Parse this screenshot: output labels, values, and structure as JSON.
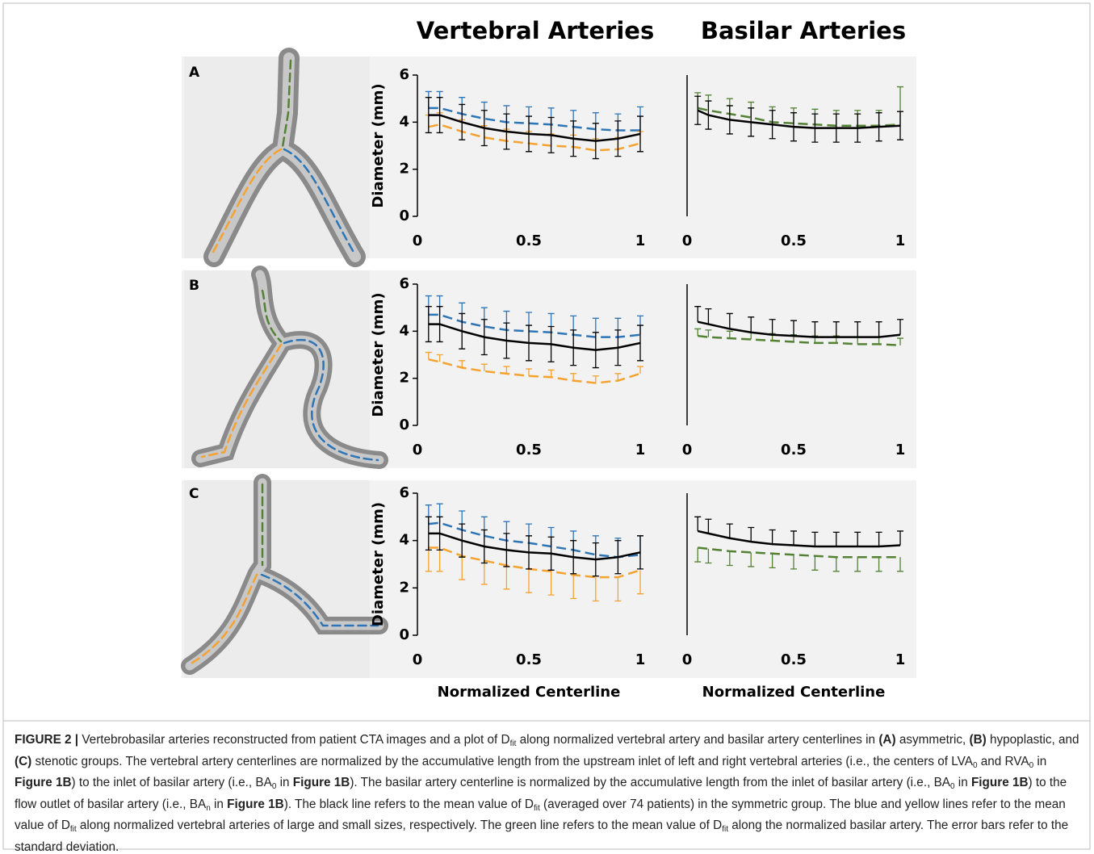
{
  "figure": {
    "columns": [
      "Vertebral Arteries",
      "Basilar Arteries"
    ],
    "panels": [
      "A",
      "B",
      "C"
    ]
  },
  "chart_data": [
    {
      "type": "line",
      "ylabel": "Diameter (mm)",
      "x": [
        0.05,
        0.1,
        0.2,
        0.3,
        0.4,
        0.5,
        0.6,
        0.7,
        0.8,
        0.9,
        1
      ],
      "xlim": [
        0,
        1
      ],
      "ylim": [
        0,
        6
      ],
      "xticks": [
        0,
        0.5,
        1
      ],
      "yticks": [
        0,
        2,
        4,
        6
      ],
      "series": [
        {
          "color": "#2e75b6",
          "dash": true,
          "error_direction": "up",
          "values": [
            4.6,
            4.6,
            4.35,
            4.15,
            4.0,
            3.95,
            3.9,
            3.8,
            3.7,
            3.65,
            3.65
          ],
          "errors": [
            0.7,
            0.7,
            0.7,
            0.7,
            0.7,
            0.7,
            0.7,
            0.7,
            0.7,
            0.7,
            1.0
          ]
        },
        {
          "color": "#f4a230",
          "dash": true,
          "error_direction": "up",
          "values": [
            3.8,
            3.9,
            3.6,
            3.35,
            3.2,
            3.1,
            3.0,
            2.95,
            2.8,
            2.85,
            3.1
          ],
          "errors": [
            0.5,
            0.5,
            0.5,
            0.5,
            0.5,
            0.5,
            0.5,
            0.5,
            0.5,
            0.5,
            0.5
          ]
        },
        {
          "color": "#000000",
          "dash": false,
          "error_direction": "both",
          "values": [
            4.3,
            4.3,
            4.0,
            3.75,
            3.6,
            3.5,
            3.45,
            3.3,
            3.2,
            3.3,
            3.5
          ],
          "errors": [
            0.75,
            0.75,
            0.75,
            0.75,
            0.75,
            0.75,
            0.75,
            0.75,
            0.75,
            0.75,
            0.75
          ]
        }
      ]
    },
    {
      "type": "line",
      "x": [
        0.05,
        0.1,
        0.2,
        0.3,
        0.4,
        0.5,
        0.6,
        0.7,
        0.8,
        0.9,
        1
      ],
      "xlim": [
        0,
        1
      ],
      "ylim": [
        0,
        6
      ],
      "xticks": [
        0,
        0.5,
        1
      ],
      "series": [
        {
          "color": "#548235",
          "dash": true,
          "error_direction": "up",
          "values": [
            4.6,
            4.5,
            4.35,
            4.2,
            4.0,
            3.95,
            3.9,
            3.85,
            3.85,
            3.85,
            3.9
          ],
          "errors": [
            0.65,
            0.65,
            0.65,
            0.65,
            0.65,
            0.65,
            0.65,
            0.65,
            0.65,
            0.65,
            1.6
          ]
        },
        {
          "color": "#000000",
          "dash": false,
          "error_direction": "both",
          "values": [
            4.5,
            4.3,
            4.1,
            4.0,
            3.9,
            3.8,
            3.75,
            3.75,
            3.75,
            3.8,
            3.85
          ],
          "errors": [
            0.6,
            0.6,
            0.6,
            0.6,
            0.6,
            0.6,
            0.6,
            0.6,
            0.6,
            0.6,
            0.6
          ]
        }
      ]
    },
    {
      "type": "line",
      "ylabel": "Diameter (mm)",
      "x": [
        0.05,
        0.1,
        0.2,
        0.3,
        0.4,
        0.5,
        0.6,
        0.7,
        0.8,
        0.9,
        1
      ],
      "xlim": [
        0,
        1
      ],
      "ylim": [
        0,
        6
      ],
      "xticks": [
        0,
        0.5,
        1
      ],
      "yticks": [
        0,
        2,
        4,
        6
      ],
      "series": [
        {
          "color": "#2e75b6",
          "dash": true,
          "error_direction": "up",
          "values": [
            4.7,
            4.7,
            4.4,
            4.2,
            4.05,
            4.0,
            3.95,
            3.85,
            3.75,
            3.75,
            3.85
          ],
          "errors": [
            0.8,
            0.8,
            0.8,
            0.8,
            0.8,
            0.8,
            0.8,
            0.8,
            0.8,
            0.8,
            0.8
          ]
        },
        {
          "color": "#f4a230",
          "dash": true,
          "error_direction": "up",
          "values": [
            2.8,
            2.7,
            2.45,
            2.3,
            2.2,
            2.1,
            2.05,
            1.9,
            1.8,
            1.9,
            2.2
          ],
          "errors": [
            0.3,
            0.3,
            0.3,
            0.3,
            0.3,
            0.3,
            0.3,
            0.3,
            0.3,
            0.3,
            0.3
          ]
        },
        {
          "color": "#000000",
          "dash": false,
          "error_direction": "both",
          "values": [
            4.3,
            4.3,
            4.0,
            3.75,
            3.6,
            3.5,
            3.45,
            3.3,
            3.2,
            3.3,
            3.5
          ],
          "errors": [
            0.75,
            0.75,
            0.75,
            0.75,
            0.75,
            0.75,
            0.75,
            0.75,
            0.75,
            0.75,
            0.75
          ]
        }
      ]
    },
    {
      "type": "line",
      "x": [
        0.05,
        0.1,
        0.2,
        0.3,
        0.4,
        0.5,
        0.6,
        0.7,
        0.8,
        0.9,
        1
      ],
      "xlim": [
        0,
        1
      ],
      "ylim": [
        0,
        6
      ],
      "xticks": [
        0,
        0.5,
        1
      ],
      "series": [
        {
          "color": "#548235",
          "dash": true,
          "error_direction": "up",
          "values": [
            3.8,
            3.75,
            3.7,
            3.65,
            3.6,
            3.55,
            3.5,
            3.5,
            3.45,
            3.45,
            3.4
          ],
          "errors": [
            0.3,
            0.3,
            0.3,
            0.3,
            0.3,
            0.3,
            0.3,
            0.3,
            0.3,
            0.3,
            0.3
          ]
        },
        {
          "color": "#000000",
          "dash": false,
          "error_direction": "up",
          "values": [
            4.4,
            4.3,
            4.1,
            3.95,
            3.85,
            3.8,
            3.75,
            3.75,
            3.75,
            3.75,
            3.85
          ],
          "errors": [
            0.65,
            0.65,
            0.65,
            0.65,
            0.65,
            0.65,
            0.65,
            0.65,
            0.65,
            0.65,
            0.65
          ]
        }
      ]
    },
    {
      "type": "line",
      "ylabel": "Diameter (mm)",
      "xlabel": "Normalized Centerline",
      "x": [
        0.05,
        0.1,
        0.2,
        0.3,
        0.4,
        0.5,
        0.6,
        0.7,
        0.8,
        0.9,
        1
      ],
      "xlim": [
        0,
        1
      ],
      "ylim": [
        0,
        6
      ],
      "xticks": [
        0,
        0.5,
        1
      ],
      "yticks": [
        0,
        2,
        4,
        6
      ],
      "series": [
        {
          "color": "#2e75b6",
          "dash": true,
          "error_direction": "up",
          "values": [
            4.7,
            4.75,
            4.45,
            4.2,
            4.0,
            3.9,
            3.75,
            3.6,
            3.4,
            3.3,
            3.4
          ],
          "errors": [
            0.8,
            0.8,
            0.8,
            0.8,
            0.8,
            0.8,
            0.8,
            0.8,
            0.8,
            0.8,
            0.8
          ]
        },
        {
          "color": "#f4a230",
          "dash": true,
          "error_direction": "down",
          "values": [
            3.7,
            3.7,
            3.35,
            3.15,
            2.95,
            2.8,
            2.7,
            2.55,
            2.45,
            2.45,
            2.75
          ],
          "errors": [
            1.0,
            1.0,
            1.0,
            1.0,
            1.0,
            1.0,
            1.0,
            1.0,
            1.0,
            1.0,
            1.0
          ]
        },
        {
          "color": "#000000",
          "dash": false,
          "error_direction": "both",
          "values": [
            4.3,
            4.3,
            4.0,
            3.75,
            3.6,
            3.5,
            3.45,
            3.3,
            3.2,
            3.3,
            3.5
          ],
          "errors": [
            0.7,
            0.7,
            0.7,
            0.7,
            0.7,
            0.7,
            0.7,
            0.7,
            0.7,
            0.7,
            0.7
          ]
        }
      ]
    },
    {
      "type": "line",
      "xlabel": "Normalized Centerline",
      "x": [
        0.05,
        0.1,
        0.2,
        0.3,
        0.4,
        0.5,
        0.6,
        0.7,
        0.8,
        0.9,
        1
      ],
      "xlim": [
        0,
        1
      ],
      "ylim": [
        0,
        6
      ],
      "xticks": [
        0,
        0.5,
        1
      ],
      "series": [
        {
          "color": "#548235",
          "dash": true,
          "error_direction": "down",
          "values": [
            3.7,
            3.65,
            3.55,
            3.5,
            3.45,
            3.4,
            3.35,
            3.3,
            3.3,
            3.3,
            3.3
          ],
          "errors": [
            0.6,
            0.6,
            0.6,
            0.6,
            0.6,
            0.6,
            0.6,
            0.6,
            0.6,
            0.6,
            0.6
          ]
        },
        {
          "color": "#000000",
          "dash": false,
          "error_direction": "up",
          "values": [
            4.4,
            4.3,
            4.1,
            3.95,
            3.85,
            3.8,
            3.75,
            3.75,
            3.75,
            3.75,
            3.8
          ],
          "errors": [
            0.6,
            0.6,
            0.6,
            0.6,
            0.6,
            0.6,
            0.6,
            0.6,
            0.6,
            0.6,
            0.6
          ]
        }
      ]
    }
  ],
  "caption": [
    {
      "t": "FIGURE 2 |",
      "s": "b"
    },
    {
      "t": " Vertebrobasilar arteries reconstructed from patient CTA images and a plot of D"
    },
    {
      "t": "fit",
      "s": "sub"
    },
    {
      "t": " along normalized vertebral artery and basilar artery centerlines in "
    },
    {
      "t": "(A)",
      "s": "b"
    },
    {
      "t": " asymmetric, "
    },
    {
      "t": "(B)",
      "s": "b"
    },
    {
      "t": " hypoplastic, and "
    },
    {
      "t": "(C)",
      "s": "b"
    },
    {
      "t": " stenotic groups. The vertebral artery centerlines are normalized by the accumulative length from the upstream inlet of left and right vertebral arteries (i.e., the centers of LVA"
    },
    {
      "t": "0",
      "s": "sub"
    },
    {
      "t": " and RVA"
    },
    {
      "t": "0",
      "s": "sub"
    },
    {
      "t": " in "
    },
    {
      "t": "Figure 1B",
      "s": "b"
    },
    {
      "t": ") to the inlet of basilar artery (i.e., BA"
    },
    {
      "t": "0",
      "s": "sub"
    },
    {
      "t": " in "
    },
    {
      "t": "Figure 1B",
      "s": "b"
    },
    {
      "t": "). The basilar artery centerline is normalized by the accumulative length from the inlet of basilar artery (i.e., BA"
    },
    {
      "t": "0",
      "s": "sub"
    },
    {
      "t": " in "
    },
    {
      "t": "Figure 1B",
      "s": "b"
    },
    {
      "t": ") to the flow outlet of basilar artery (i.e., BA"
    },
    {
      "t": "n",
      "s": "sub"
    },
    {
      "t": " in "
    },
    {
      "t": "Figure 1B",
      "s": "b"
    },
    {
      "t": "). The black line refers to the mean value of D"
    },
    {
      "t": "fit",
      "s": "sub"
    },
    {
      "t": " (averaged over 74 patients) in the symmetric group. The blue and yellow lines refer to the mean value of D"
    },
    {
      "t": "fit",
      "s": "sub"
    },
    {
      "t": " along normalized vertebral arteries of large and small sizes, respectively. The green line refers to the mean value of D"
    },
    {
      "t": "fit",
      "s": "sub"
    },
    {
      "t": " along the normalized basilar artery. The error bars refer to the standard deviation."
    }
  ]
}
